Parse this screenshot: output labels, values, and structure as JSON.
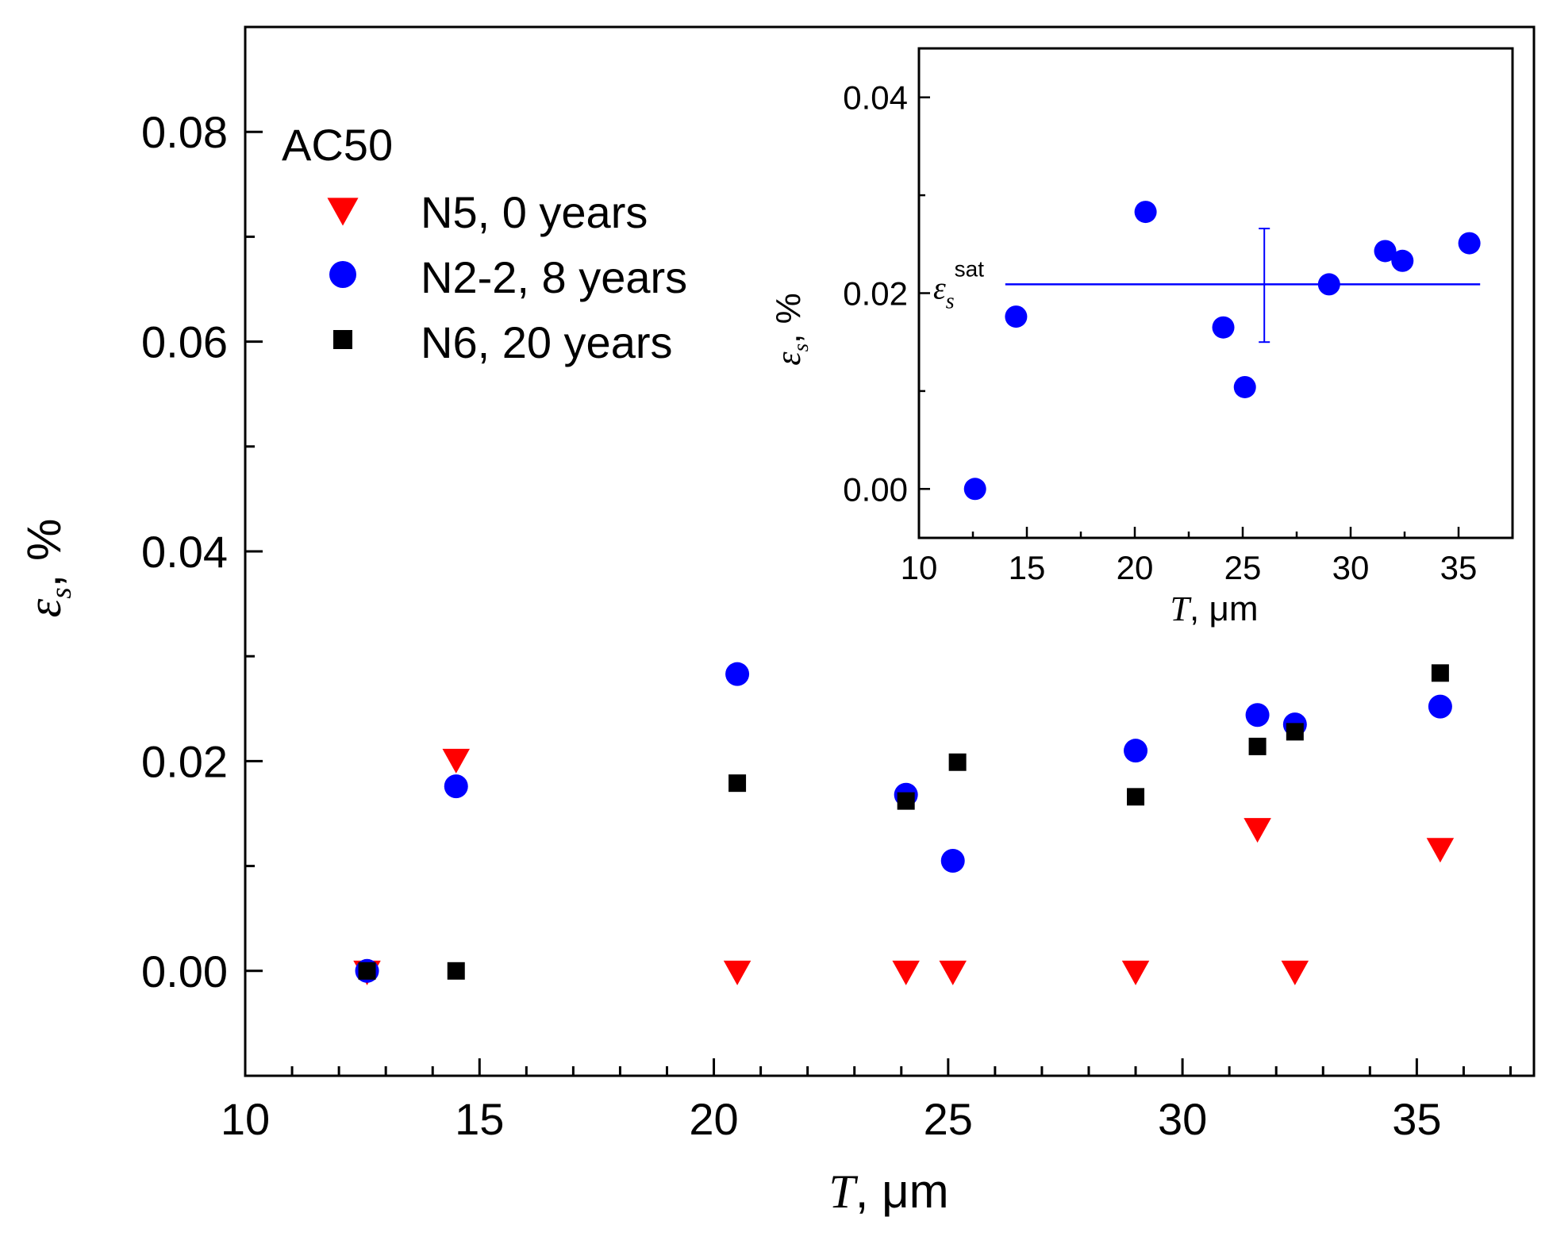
{
  "chart_data": [
    {
      "type": "scatter",
      "xlabel": {
        "symbol": "T",
        "unit": ", μm"
      },
      "ylabel": {
        "symbol": "ε",
        "subscript": "s",
        "unit": ", %"
      },
      "xlim": [
        10,
        37.5
      ],
      "ylim": [
        -0.01,
        0.09
      ],
      "xticks": [
        10,
        15,
        20,
        25,
        30,
        35
      ],
      "xtick_labels": [
        "10",
        "15",
        "20",
        "25",
        "30",
        "35"
      ],
      "yticks": [
        0.0,
        0.02,
        0.04,
        0.06,
        0.08
      ],
      "ytick_labels": [
        "0.00",
        "0.02",
        "0.04",
        "0.06",
        "0.08"
      ],
      "legend": {
        "title": "AC50",
        "placement": "top-left"
      },
      "grid": false,
      "series": [
        {
          "name": "N5, 0 years",
          "marker": "triangle-down",
          "color": "#ff0000",
          "points": [
            [
              12.6,
              0.0
            ],
            [
              14.5,
              0.0202
            ],
            [
              20.5,
              0.0
            ],
            [
              24.1,
              0.0
            ],
            [
              25.1,
              0.0
            ],
            [
              29.0,
              0.0
            ],
            [
              31.6,
              0.0136
            ],
            [
              32.4,
              0.0
            ],
            [
              35.5,
              0.0117
            ]
          ]
        },
        {
          "name": "N2-2, 8 years",
          "marker": "circle",
          "color": "#0000ff",
          "points": [
            [
              12.6,
              0.0
            ],
            [
              14.5,
              0.0176
            ],
            [
              20.5,
              0.0283
            ],
            [
              24.1,
              0.0168
            ],
            [
              25.1,
              0.0105
            ],
            [
              29.0,
              0.021
            ],
            [
              31.6,
              0.0244
            ],
            [
              32.4,
              0.0235
            ],
            [
              35.5,
              0.0252
            ]
          ]
        },
        {
          "name": "N6, 20 years",
          "marker": "square",
          "color": "#000000",
          "points": [
            [
              12.6,
              0.0
            ],
            [
              14.5,
              0.0
            ],
            [
              20.5,
              0.0179
            ],
            [
              24.1,
              0.0162
            ],
            [
              25.2,
              0.0199
            ],
            [
              29.0,
              0.0166
            ],
            [
              31.6,
              0.0214
            ],
            [
              32.4,
              0.0228
            ],
            [
              35.5,
              0.0284
            ]
          ]
        }
      ]
    },
    {
      "type": "scatter",
      "xlabel": {
        "symbol": "T",
        "unit": ", μm"
      },
      "ylabel": {
        "symbol": "ε",
        "subscript": "s",
        "unit": ", %"
      },
      "xlim": [
        10,
        37.5
      ],
      "ylim": [
        -0.005,
        0.045
      ],
      "xticks": [
        10,
        15,
        20,
        25,
        30,
        35
      ],
      "xtick_labels": [
        "10",
        "15",
        "20",
        "25",
        "30",
        "35"
      ],
      "yticks": [
        0.0,
        0.02,
        0.04
      ],
      "ytick_labels": [
        "0.00",
        "0.02",
        "0.04"
      ],
      "grid": false,
      "series": [
        {
          "marker": "circle",
          "color": "#0000ff",
          "points": [
            [
              12.6,
              0.0
            ],
            [
              14.5,
              0.0176
            ],
            [
              20.5,
              0.0283
            ],
            [
              24.1,
              0.0165
            ],
            [
              25.1,
              0.0104
            ],
            [
              29.0,
              0.0209
            ],
            [
              31.6,
              0.0243
            ],
            [
              32.4,
              0.0233
            ],
            [
              35.5,
              0.0251
            ]
          ]
        }
      ],
      "reference_line": {
        "label": {
          "symbol": "ε",
          "subscript": "s",
          "superscript": "sat"
        },
        "y": 0.0209,
        "x_range": [
          14,
          36
        ],
        "color": "#0000ff",
        "error_bar": {
          "x": 26,
          "y_range": [
            0.015,
            0.0266
          ]
        }
      }
    }
  ]
}
